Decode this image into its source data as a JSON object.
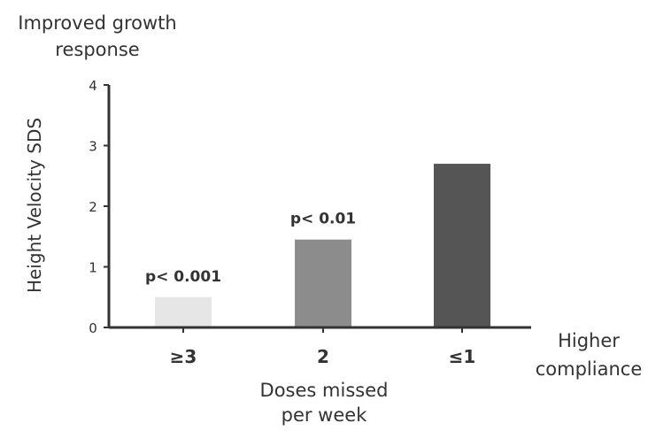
{
  "chart_data": {
    "type": "bar",
    "title": "",
    "categories": [
      "≥3",
      "2",
      "≤1"
    ],
    "values": [
      0.5,
      1.45,
      2.7
    ],
    "bar_colors": [
      "#e6e6e6",
      "#8c8c8c",
      "#555555"
    ],
    "bar_labels": [
      "p< 0.001",
      "p< 0.01",
      ""
    ],
    "ylabel": "Height Velocity SDS",
    "xlabel_lines": [
      "Doses missed",
      "per week"
    ],
    "ylim": [
      0,
      4
    ],
    "yticks": [
      0,
      1,
      2,
      3,
      4
    ],
    "grid": false,
    "annotation_top_lines": [
      "Improved growth",
      "response"
    ],
    "annotation_right_lines": [
      "Higher",
      "compliance"
    ]
  }
}
